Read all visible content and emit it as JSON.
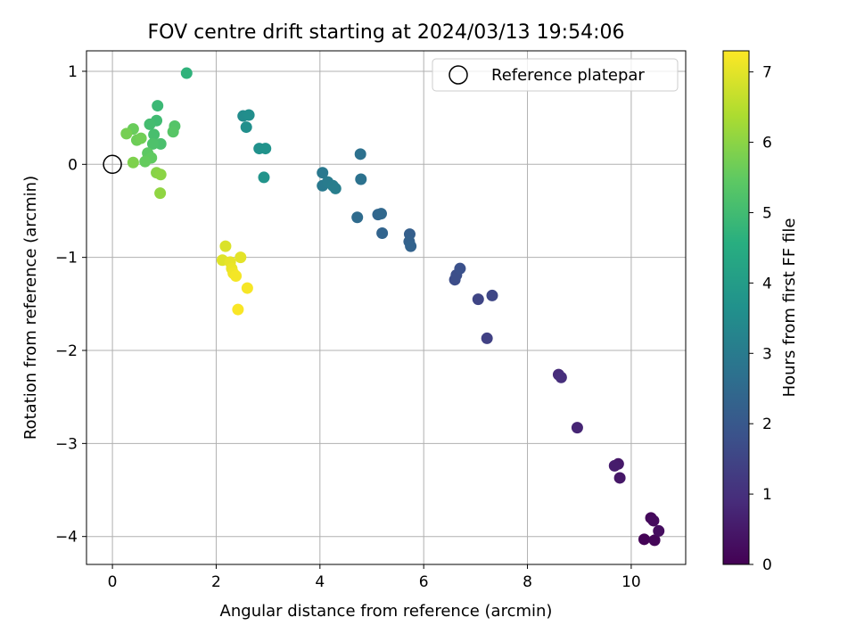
{
  "chart_data": {
    "type": "scatter",
    "title": "FOV centre drift starting at 2024/03/13 19:54:06",
    "xlabel": "Angular distance from reference (arcmin)",
    "ylabel": "Rotation from reference (arcmin)",
    "xlim": [
      -0.5,
      11.05
    ],
    "ylim": [
      -4.3,
      1.22
    ],
    "xticks": [
      0,
      2,
      4,
      6,
      8,
      10
    ],
    "xtick_labels": [
      "0",
      "2",
      "4",
      "6",
      "8",
      "10"
    ],
    "yticks": [
      1,
      0,
      -1,
      -2,
      -3,
      -4
    ],
    "ytick_labels": [
      "1",
      "0",
      "−1",
      "−2",
      "−3",
      "−4"
    ],
    "grid": true,
    "legend": {
      "placement": "top-right",
      "entries": [
        "Reference platepar"
      ]
    },
    "reference_point": {
      "x": 0,
      "y": 0
    },
    "colorbar": {
      "label": "Hours from first FF file",
      "colormap": "viridis",
      "range": [
        0,
        7.3
      ],
      "ticks": [
        0,
        1,
        2,
        3,
        4,
        5,
        6,
        7
      ],
      "tick_labels": [
        "0",
        "1",
        "2",
        "3",
        "4",
        "5",
        "6",
        "7"
      ]
    },
    "points": [
      {
        "x": 10.25,
        "y": -4.03,
        "c": 0.05
      },
      {
        "x": 10.45,
        "y": -4.04,
        "c": 0.1
      },
      {
        "x": 10.38,
        "y": -3.8,
        "c": 0.15
      },
      {
        "x": 10.43,
        "y": -3.83,
        "c": 0.2
      },
      {
        "x": 10.53,
        "y": -3.94,
        "c": 0.25
      },
      {
        "x": 9.78,
        "y": -3.37,
        "c": 0.45
      },
      {
        "x": 9.75,
        "y": -3.22,
        "c": 0.5
      },
      {
        "x": 9.68,
        "y": -3.24,
        "c": 0.55
      },
      {
        "x": 8.96,
        "y": -2.83,
        "c": 0.75
      },
      {
        "x": 8.6,
        "y": -2.26,
        "c": 0.9
      },
      {
        "x": 8.65,
        "y": -2.29,
        "c": 0.95
      },
      {
        "x": 7.22,
        "y": -1.87,
        "c": 1.4
      },
      {
        "x": 7.05,
        "y": -1.45,
        "c": 1.5
      },
      {
        "x": 7.32,
        "y": -1.41,
        "c": 1.55
      },
      {
        "x": 6.6,
        "y": -1.24,
        "c": 1.7
      },
      {
        "x": 6.63,
        "y": -1.19,
        "c": 1.75
      },
      {
        "x": 6.7,
        "y": -1.12,
        "c": 1.8
      },
      {
        "x": 5.73,
        "y": -0.75,
        "c": 2.2
      },
      {
        "x": 5.72,
        "y": -0.83,
        "c": 2.25
      },
      {
        "x": 5.75,
        "y": -0.88,
        "c": 2.3
      },
      {
        "x": 5.2,
        "y": -0.74,
        "c": 2.35
      },
      {
        "x": 5.12,
        "y": -0.54,
        "c": 2.4
      },
      {
        "x": 5.18,
        "y": -0.53,
        "c": 2.45
      },
      {
        "x": 4.72,
        "y": -0.57,
        "c": 2.55
      },
      {
        "x": 4.78,
        "y": 0.11,
        "c": 2.7
      },
      {
        "x": 4.79,
        "y": -0.16,
        "c": 2.75
      },
      {
        "x": 4.05,
        "y": -0.09,
        "c": 2.9
      },
      {
        "x": 4.05,
        "y": -0.23,
        "c": 2.95
      },
      {
        "x": 4.15,
        "y": -0.19,
        "c": 3.0
      },
      {
        "x": 4.25,
        "y": -0.23,
        "c": 3.05
      },
      {
        "x": 4.3,
        "y": -0.26,
        "c": 3.1
      },
      {
        "x": 2.52,
        "y": 0.52,
        "c": 3.5
      },
      {
        "x": 2.63,
        "y": 0.53,
        "c": 3.55
      },
      {
        "x": 2.58,
        "y": 0.4,
        "c": 3.6
      },
      {
        "x": 2.83,
        "y": 0.17,
        "c": 3.65
      },
      {
        "x": 2.95,
        "y": 0.17,
        "c": 3.7
      },
      {
        "x": 2.92,
        "y": -0.14,
        "c": 3.75
      },
      {
        "x": 1.43,
        "y": 0.98,
        "c": 4.7
      },
      {
        "x": 0.87,
        "y": 0.63,
        "c": 4.9
      },
      {
        "x": 0.85,
        "y": 0.47,
        "c": 5.0
      },
      {
        "x": 0.72,
        "y": 0.43,
        "c": 5.05
      },
      {
        "x": 0.8,
        "y": 0.32,
        "c": 5.1
      },
      {
        "x": 0.93,
        "y": 0.22,
        "c": 5.15
      },
      {
        "x": 0.78,
        "y": 0.22,
        "c": 5.2
      },
      {
        "x": 1.2,
        "y": 0.41,
        "c": 5.3
      },
      {
        "x": 1.17,
        "y": 0.35,
        "c": 5.35
      },
      {
        "x": 0.68,
        "y": 0.12,
        "c": 5.45
      },
      {
        "x": 0.75,
        "y": 0.07,
        "c": 5.5
      },
      {
        "x": 0.63,
        "y": 0.03,
        "c": 5.55
      },
      {
        "x": 0.4,
        "y": 0.38,
        "c": 5.6
      },
      {
        "x": 0.47,
        "y": 0.26,
        "c": 5.65
      },
      {
        "x": 0.55,
        "y": 0.28,
        "c": 5.7
      },
      {
        "x": 0.27,
        "y": 0.33,
        "c": 5.75
      },
      {
        "x": 0.4,
        "y": 0.02,
        "c": 5.85
      },
      {
        "x": 0.85,
        "y": -0.09,
        "c": 5.95
      },
      {
        "x": 0.93,
        "y": -0.11,
        "c": 6.0
      },
      {
        "x": 0.92,
        "y": -0.31,
        "c": 6.05
      },
      {
        "x": 2.18,
        "y": -0.88,
        "c": 6.9
      },
      {
        "x": 2.12,
        "y": -1.03,
        "c": 6.95
      },
      {
        "x": 2.47,
        "y": -1.0,
        "c": 7.0
      },
      {
        "x": 2.27,
        "y": -1.05,
        "c": 7.05
      },
      {
        "x": 2.3,
        "y": -1.12,
        "c": 7.1
      },
      {
        "x": 2.33,
        "y": -1.17,
        "c": 7.15
      },
      {
        "x": 2.38,
        "y": -1.2,
        "c": 7.2
      },
      {
        "x": 2.6,
        "y": -1.33,
        "c": 7.22
      },
      {
        "x": 2.42,
        "y": -1.56,
        "c": 7.25
      }
    ]
  }
}
